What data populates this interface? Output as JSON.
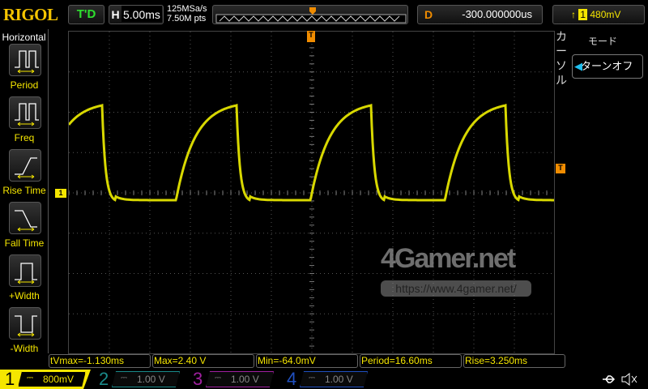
{
  "header": {
    "brand": "RIGOL",
    "trigger_status": "T'D",
    "horizontal_label": "H",
    "timebase": "5.00ms",
    "sample_rate": "125MSa/s",
    "memory_depth": "7.50M pts",
    "delay_label": "D",
    "delay": "-300.000000us",
    "trigger_level": "480mV"
  },
  "sidebar": {
    "title": "Horizontal",
    "items": [
      {
        "label": "Period"
      },
      {
        "label": "Freq"
      },
      {
        "label": "Rise Time"
      },
      {
        "label": "Fall Time"
      },
      {
        "label": "+Width"
      },
      {
        "label": "-Width"
      }
    ]
  },
  "measurements": [
    "tVmax=-1.130ms",
    "Max=2.40 V",
    "Min=-64.0mV",
    "Period=16.60ms",
    "Rise=3.250ms"
  ],
  "channels": [
    {
      "num": "1",
      "scale": "800mV",
      "color": "#f5e600",
      "active": true
    },
    {
      "num": "2",
      "scale": "1.00 V",
      "color": "#1a8a8a"
    },
    {
      "num": "3",
      "scale": "1.00 V",
      "color": "#a020a0"
    },
    {
      "num": "4",
      "scale": "1.00 V",
      "color": "#2050c0"
    }
  ],
  "menu": {
    "vertical_label": "カーソル",
    "mode_label": "モード",
    "mode_value": "ターンオフ"
  },
  "markers": {
    "trigger": "T",
    "channel": "1"
  },
  "watermark": {
    "logo": "4Gamer.net",
    "url": "https://www.4gamer.net/"
  },
  "waveform": {
    "period_ms": 16.6,
    "high_v": 2.4,
    "low_v": -0.064,
    "volts_per_div": 0.8,
    "ms_per_div": 5,
    "trace_color": "#d8d800"
  }
}
